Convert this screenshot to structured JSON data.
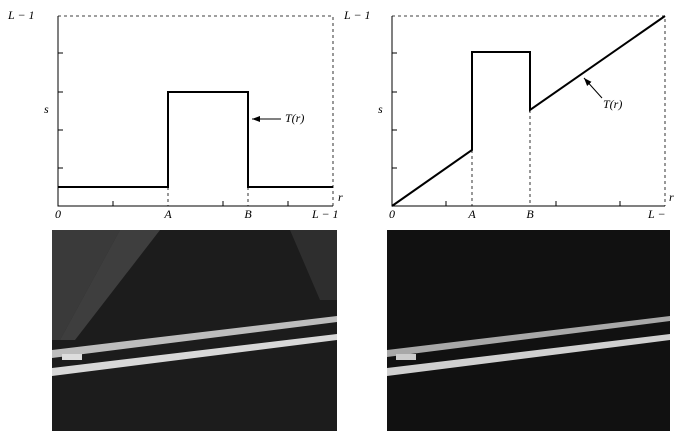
{
  "panels": [
    {
      "y_max_label": "L − 1",
      "y_label": "s",
      "curve_label": "T(r)",
      "x_label": "r",
      "x_origin": "0",
      "a_label": "A",
      "b_label": "B",
      "x_max_label": "L − 1"
    },
    {
      "y_max_label": "L − 1",
      "y_label": "s",
      "curve_label": "T(r)",
      "x_label": "r",
      "x_origin": "0",
      "a_label": "A",
      "b_label": "B",
      "x_max_label": "L −"
    }
  ]
}
